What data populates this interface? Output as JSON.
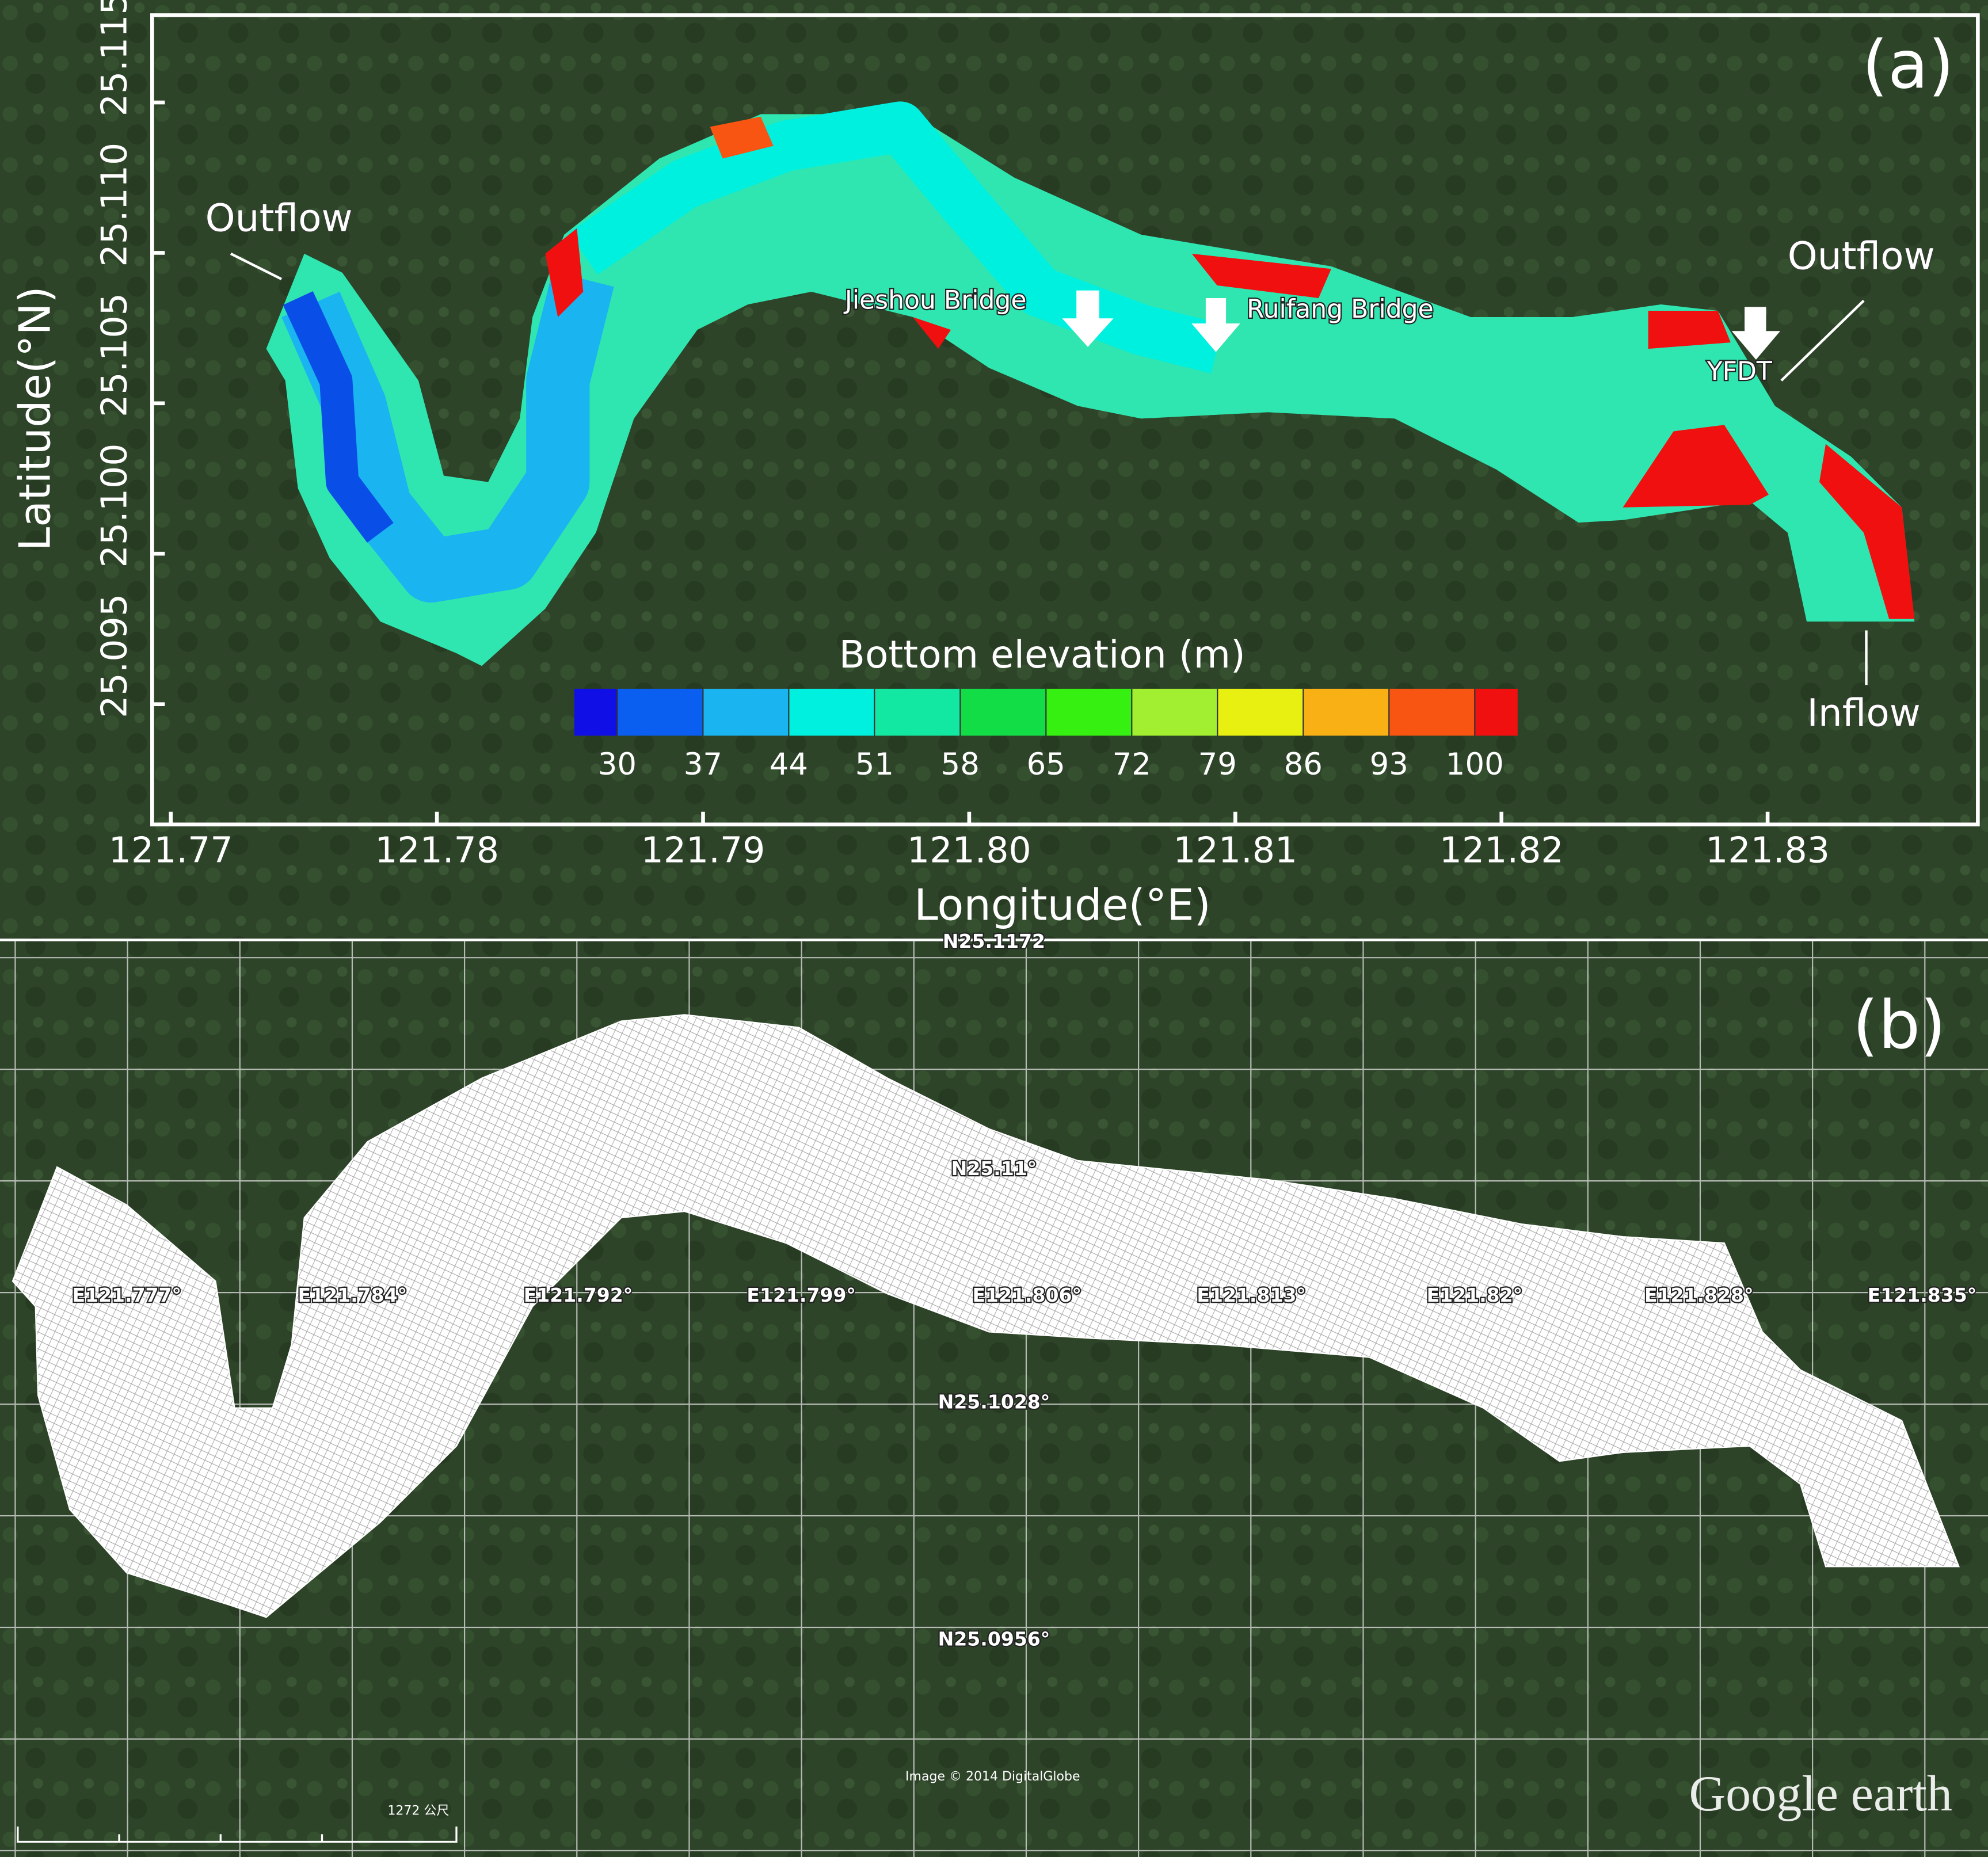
{
  "panel_a": {
    "label": "(a)",
    "x_label": "Longitude(°E)",
    "y_label": "Latitude(°N)",
    "xlim": [
      121.7693,
      121.8379
    ],
    "ylim": [
      25.091,
      25.1179
    ],
    "xticks": [
      121.77,
      121.78,
      121.79,
      {
        "value": 121.8,
        "label": "121.80"
      },
      121.81,
      121.82,
      121.83
    ],
    "yticks": [
      25.095,
      {
        "value": 25.1,
        "label": "25.100"
      },
      25.105,
      {
        "value": 25.11,
        "label": "25.110"
      },
      25.115
    ],
    "annotations": [
      "Outflow",
      "Outflow",
      "Inflow",
      "Jieshou Bridge",
      "Ruifang Bridge",
      "YFDT"
    ],
    "colorbar": {
      "title": "Bottom elevation (m)",
      "clim": [
        26.5,
        103.5
      ],
      "ticks": [
        30,
        37,
        44,
        51,
        58,
        65,
        72,
        79,
        86,
        93,
        100
      ],
      "colors": [
        "#1010e6",
        "#0a5ef0",
        "#1ab4f0",
        "#00f0e0",
        "#12e8a2",
        "#12dc46",
        "#36f012",
        "#a2ee30",
        "#e8f012",
        "#f8b014",
        "#f85412",
        "#f01010"
      ]
    }
  },
  "panel_b": {
    "label": "(b)",
    "grid_labels": [
      "E121.777°",
      "E121.784°",
      "E121.792°",
      "E121.799°",
      "E121.806°",
      "E121.813°",
      "E121.82°",
      "E121.828°",
      "E121.835°",
      "N25.1172",
      "N25.11°",
      "N25.1028°",
      "N25.0956°"
    ],
    "credit": "Image © 2014 DigitalGlobe",
    "scale": "1272 公尺",
    "logo": "Google earth"
  }
}
